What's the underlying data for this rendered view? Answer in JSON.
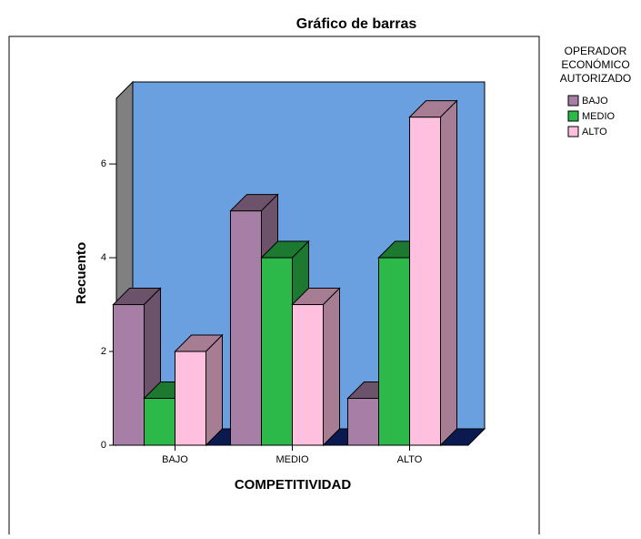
{
  "chart_data": {
    "type": "bar3d",
    "title": "Gráfico de barras",
    "x_label": "COMPETITIVIDAD",
    "y_label": "Recuento",
    "legend_title": [
      "OPERADOR",
      "ECONÓMICO",
      "AUTORIZADO"
    ],
    "categories": [
      "BAJO",
      "MEDIO",
      "ALTO"
    ],
    "series": [
      {
        "name": "BAJO",
        "color": "#a77ea6",
        "values": [
          3,
          5,
          1
        ]
      },
      {
        "name": "MEDIO",
        "color": "#2db84a",
        "values": [
          1,
          4,
          4
        ]
      },
      {
        "name": "ALTO",
        "color": "#ffc0e0",
        "values": [
          2,
          3,
          7
        ]
      }
    ],
    "ylim": [
      0,
      7.4
    ],
    "yticks": [
      0,
      2,
      4,
      6
    ]
  }
}
